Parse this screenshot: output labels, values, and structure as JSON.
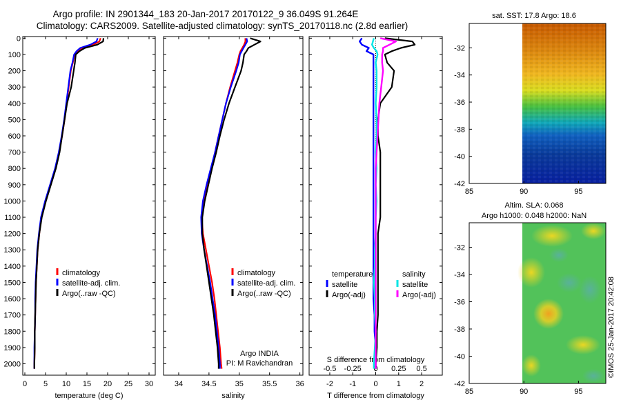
{
  "header": {
    "line1": "Argo profile: IN 2901344_183 20-Jan-2017 20170122_9 36.049S 91.264E",
    "line2": "Climatology: CARS2009. Satellite-adjusted climatology: synTS_20170118.nc (2.8d earlier)"
  },
  "depth_axis": {
    "ticks": [
      "0",
      "100",
      "200",
      "300",
      "400",
      "500",
      "600",
      "700",
      "800",
      "900",
      "1000",
      "1100",
      "1200",
      "1300",
      "1400",
      "1500",
      "1600",
      "1700",
      "1800",
      "1900",
      "2000"
    ],
    "ylim": [
      -10,
      2070
    ]
  },
  "colors": {
    "climatology": "#ff0000",
    "satellite": "#0000ff",
    "argo": "#000000",
    "sat_salinity": "#00e5e5",
    "argo_salinity": "#ff00ff"
  },
  "chart_data": [
    {
      "id": "temperature",
      "type": "line",
      "xlabel": "temperature (deg C)",
      "xlim": [
        -0.5,
        31.5
      ],
      "xticks": [
        "0",
        "5",
        "10",
        "15",
        "20",
        "25",
        "30"
      ],
      "depth": [
        0,
        20,
        40,
        60,
        80,
        100,
        150,
        200,
        300,
        400,
        500,
        600,
        700,
        800,
        900,
        1000,
        1100,
        1200,
        1300,
        1400,
        1500,
        1600,
        1700,
        1800,
        1900,
        2000,
        2030
      ],
      "series": [
        {
          "name": "climatology",
          "values": [
            18.3,
            18.0,
            16.5,
            14.0,
            13.0,
            12.0,
            11.6,
            11.1,
            10.6,
            10.1,
            9.6,
            9.0,
            8.3,
            7.4,
            6.2,
            5.0,
            4.0,
            3.5,
            3.1,
            2.9,
            2.7,
            2.6,
            2.5,
            2.4,
            2.4,
            2.3,
            2.3
          ]
        },
        {
          "name": "satellite-adj. clim.",
          "values": [
            17.6,
            17.3,
            15.8,
            13.4,
            12.5,
            11.9,
            11.5,
            11.0,
            10.5,
            10.0,
            9.5,
            8.9,
            8.2,
            7.3,
            6.1,
            4.9,
            3.9,
            3.4,
            3.0,
            2.8,
            2.6,
            2.5,
            2.5,
            2.4,
            2.3,
            2.3,
            2.3
          ]
        },
        {
          "name": "Argo(..raw -QC)",
          "values": [
            19.0,
            18.9,
            17.5,
            14.5,
            13.2,
            12.3,
            12.1,
            11.8,
            11.2,
            10.2,
            9.6,
            9.0,
            8.4,
            7.5,
            6.3,
            5.1,
            4.1,
            3.5,
            3.1,
            2.9,
            2.7,
            2.6,
            2.5,
            2.4,
            2.4,
            2.3,
            2.3
          ]
        }
      ],
      "legend": [
        "climatology",
        "satellite-adj. clim.",
        "Argo(..raw -QC)"
      ]
    },
    {
      "id": "salinity",
      "type": "line",
      "xlabel": "salinity",
      "xlim": [
        33.75,
        36.05
      ],
      "xticks": [
        "34",
        "34.5",
        "35",
        "35.5",
        "36"
      ],
      "depth": [
        0,
        20,
        40,
        60,
        80,
        100,
        150,
        200,
        300,
        400,
        500,
        600,
        700,
        800,
        900,
        1000,
        1100,
        1200,
        1300,
        1400,
        1500,
        1600,
        1700,
        1800,
        1900,
        2000,
        2030
      ],
      "series": [
        {
          "name": "climatology",
          "values": [
            35.1,
            35.1,
            35.08,
            35.05,
            35.02,
            35.0,
            34.97,
            34.93,
            34.85,
            34.78,
            34.72,
            34.66,
            34.6,
            34.54,
            34.47,
            34.41,
            34.38,
            34.4,
            34.45,
            34.5,
            34.55,
            34.59,
            34.62,
            34.65,
            34.68,
            34.7,
            34.71
          ]
        },
        {
          "name": "satellite-adj. clim.",
          "values": [
            35.12,
            35.13,
            35.1,
            35.07,
            35.04,
            35.01,
            34.99,
            34.95,
            34.86,
            34.78,
            34.72,
            34.66,
            34.6,
            34.53,
            34.46,
            34.4,
            34.37,
            34.38,
            34.42,
            34.47,
            34.52,
            34.56,
            34.6,
            34.63,
            34.66,
            34.68,
            34.68
          ]
        },
        {
          "name": "Argo(..raw -QC)",
          "values": [
            35.18,
            35.35,
            35.25,
            35.15,
            35.12,
            35.08,
            35.06,
            35.03,
            34.93,
            34.83,
            34.75,
            34.68,
            34.62,
            34.55,
            34.49,
            34.43,
            34.39,
            34.39,
            34.42,
            34.46,
            34.5,
            34.54,
            34.58,
            34.61,
            34.64,
            34.66,
            34.66
          ]
        }
      ],
      "legend": [
        "climatology",
        "satellite-adj. clim.",
        "Argo(..raw -QC)"
      ],
      "annotation": [
        "Argo INDIA",
        "PI: M Ravichandran"
      ]
    },
    {
      "id": "difference",
      "type": "line",
      "xlabel": "T difference from climatology",
      "xlabel_top": "S difference from climatology",
      "xlim": [
        -2.9,
        2.9
      ],
      "xticks": [
        "-2",
        "-1",
        "0",
        "1",
        "2"
      ],
      "sticks": [
        "-0.5",
        "-0.25",
        "0",
        "0.25",
        "0.5"
      ],
      "s_scale": 0.25,
      "depth": [
        0,
        20,
        40,
        60,
        80,
        100,
        150,
        200,
        300,
        400,
        500,
        600,
        700,
        800,
        900,
        1000,
        1100,
        1200,
        1300,
        1400,
        1500,
        1600,
        1700,
        1800,
        1900,
        2000,
        2030
      ],
      "series": [
        {
          "name": "temperature satellite",
          "values": [
            -0.6,
            -0.7,
            -0.6,
            -0.3,
            -0.4,
            -0.1,
            -0.1,
            -0.1,
            -0.1,
            -0.1,
            -0.1,
            -0.1,
            -0.1,
            -0.1,
            -0.1,
            -0.1,
            -0.1,
            -0.1,
            -0.1,
            -0.1,
            -0.1,
            -0.1,
            -0.05,
            -0.05,
            0.0,
            0.0,
            0.0
          ]
        },
        {
          "name": "temperature Argo(-adj)",
          "values": [
            0.4,
            1.6,
            1.7,
            1.1,
            0.7,
            0.4,
            0.5,
            0.8,
            0.7,
            0.2,
            0.1,
            0.1,
            0.2,
            0.2,
            0.2,
            0.2,
            0.2,
            0.1,
            0.1,
            0.1,
            0.1,
            0.1,
            0.1,
            0.05,
            0.05,
            0.0,
            0.0
          ]
        },
        {
          "name": "salinity satellite",
          "values": [
            -0.02,
            -0.03,
            -0.04,
            -0.02,
            0.01,
            0.02,
            0.0,
            0.01,
            0.01,
            0.0,
            0.01,
            0.01,
            0.0,
            0.01,
            0.0,
            0.01,
            0.0,
            0.0,
            -0.01,
            -0.01,
            -0.02,
            -0.01,
            -0.01,
            0.0,
            -0.01,
            -0.02,
            -0.02
          ]
        },
        {
          "name": "salinity Argo(-adj)",
          "values": [
            0.05,
            0.22,
            0.15,
            0.08,
            0.08,
            0.07,
            0.07,
            0.08,
            0.06,
            0.04,
            0.03,
            0.02,
            0.01,
            0.0,
            0.0,
            0.0,
            0.0,
            0.0,
            0.0,
            0.0,
            0.0,
            0.0,
            0.0,
            0.0,
            0.0,
            0.0,
            0.0
          ]
        }
      ],
      "legend_headers": [
        "temperature",
        "salinity"
      ],
      "legend": [
        "satellite",
        "Argo(-adj)",
        "satellite",
        "Argo(-adj)"
      ]
    },
    {
      "id": "sst_map",
      "type": "heatmap",
      "title": "sat. SST: 17.8 Argo: 18.6",
      "xlim": [
        85,
        97.5
      ],
      "ylim": [
        -42,
        -30.2
      ],
      "xticks": [
        "85",
        "90",
        "95"
      ],
      "yticks": [
        "-32",
        "-34",
        "-36",
        "-38",
        "-40",
        "-42"
      ]
    },
    {
      "id": "sla_map",
      "type": "heatmap",
      "title_line1": "Altim. SLA: 0.068",
      "title_line2": "Argo h1000: 0.048 h2000: NaN",
      "xlim": [
        85,
        97.5
      ],
      "ylim": [
        -42,
        -30.2
      ],
      "xticks": [
        "85",
        "90",
        "95"
      ],
      "yticks": [
        "-32",
        "-34",
        "-36",
        "-38",
        "-40",
        "-42"
      ]
    }
  ],
  "footer": {
    "credit": "©IMOS 25-Jan-2017 20:42:08"
  }
}
